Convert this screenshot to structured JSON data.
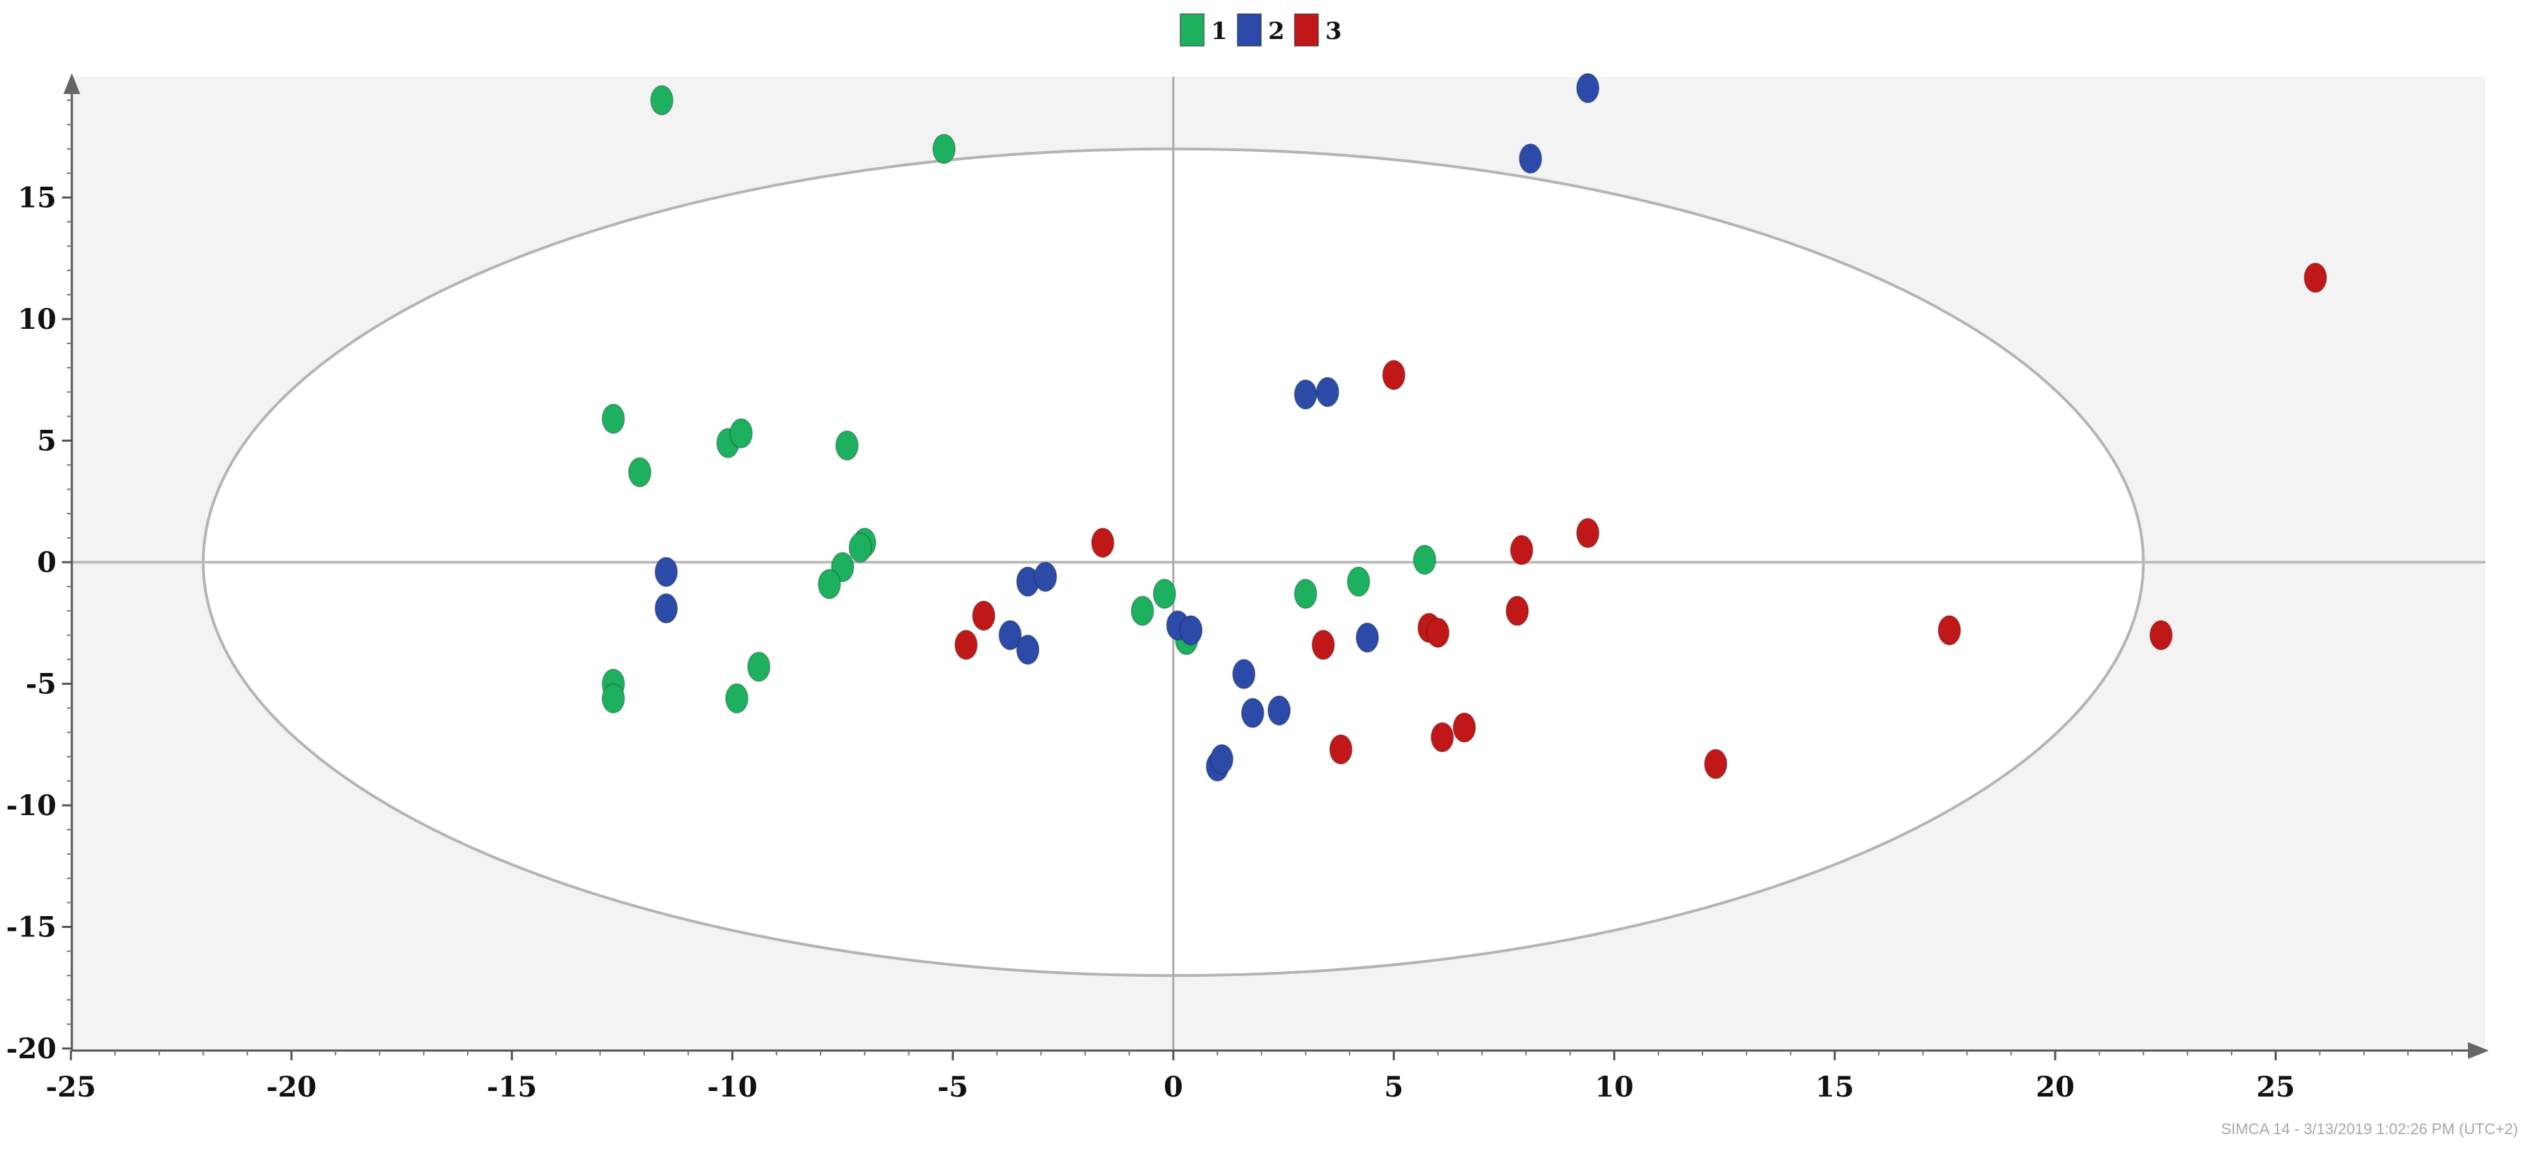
{
  "chart_data": {
    "type": "scatter",
    "xlim": [
      -25,
      30
    ],
    "ylim": [
      -20,
      20
    ],
    "x_ticks": [
      -25,
      -20,
      -15,
      -10,
      -5,
      0,
      5,
      10,
      15,
      20,
      25
    ],
    "y_ticks": [
      -20,
      -15,
      -10,
      -5,
      0,
      5,
      10,
      15
    ],
    "x_tick_labels": [
      "-25",
      "-20",
      "-15",
      "-10",
      "-5",
      "0",
      "5",
      "10",
      "15",
      "20",
      "25"
    ],
    "y_tick_labels": [
      "-20",
      "-15",
      "-10",
      "-5",
      "0",
      "5",
      "10",
      "15"
    ],
    "ellipse": {
      "center": [
        0,
        0
      ],
      "rx": 22,
      "ry": 17
    },
    "legend_position": "top-center",
    "plot_background": "#f3f3f3",
    "ellipse_fill": "#ffffff",
    "ellipse_stroke": "#b4b4b4",
    "series": [
      {
        "name": "1",
        "color": "#1db05e",
        "points": [
          [
            -11.6,
            19.0
          ],
          [
            -5.2,
            17.0
          ],
          [
            -12.7,
            5.9
          ],
          [
            -12.1,
            3.7
          ],
          [
            -10.1,
            4.9
          ],
          [
            -9.8,
            5.3
          ],
          [
            -7.4,
            4.8
          ],
          [
            -7.0,
            0.8
          ],
          [
            -7.1,
            0.6
          ],
          [
            -7.5,
            -0.2
          ],
          [
            -7.8,
            -0.9
          ],
          [
            -12.7,
            -5.0
          ],
          [
            -12.7,
            -5.6
          ],
          [
            -9.4,
            -4.3
          ],
          [
            -9.9,
            -5.6
          ],
          [
            -0.7,
            -2.0
          ],
          [
            -0.2,
            -1.3
          ],
          [
            0.3,
            -3.2
          ],
          [
            3.0,
            -1.3
          ],
          [
            4.2,
            -0.8
          ],
          [
            5.7,
            0.1
          ]
        ]
      },
      {
        "name": "2",
        "color": "#2c4aa8",
        "points": [
          [
            9.4,
            19.5
          ],
          [
            8.1,
            16.6
          ],
          [
            3.0,
            6.9
          ],
          [
            3.5,
            7.0
          ],
          [
            -11.5,
            -0.4
          ],
          [
            -11.5,
            -1.9
          ],
          [
            -3.3,
            -0.8
          ],
          [
            -2.9,
            -0.6
          ],
          [
            -3.7,
            -3.0
          ],
          [
            -3.3,
            -3.6
          ],
          [
            0.1,
            -2.6
          ],
          [
            0.4,
            -2.8
          ],
          [
            1.6,
            -4.6
          ],
          [
            1.8,
            -6.2
          ],
          [
            2.4,
            -6.1
          ],
          [
            1.0,
            -8.4
          ],
          [
            1.1,
            -8.1
          ],
          [
            4.4,
            -3.1
          ]
        ]
      },
      {
        "name": "3",
        "color": "#c01818",
        "points": [
          [
            25.9,
            11.7
          ],
          [
            5.0,
            7.7
          ],
          [
            -1.6,
            0.8
          ],
          [
            -4.3,
            -2.2
          ],
          [
            -4.7,
            -3.4
          ],
          [
            3.4,
            -3.4
          ],
          [
            3.8,
            -7.7
          ],
          [
            5.8,
            -2.7
          ],
          [
            6.0,
            -2.9
          ],
          [
            6.1,
            -7.2
          ],
          [
            6.6,
            -6.8
          ],
          [
            7.9,
            0.5
          ],
          [
            7.8,
            -2.0
          ],
          [
            9.4,
            1.2
          ],
          [
            12.3,
            -8.3
          ],
          [
            17.6,
            -2.8
          ],
          [
            22.4,
            -3.0
          ]
        ]
      }
    ]
  },
  "footer": {
    "text": "SIMCA 14 - 3/13/2019 1:02:26 PM (UTC+2)"
  }
}
